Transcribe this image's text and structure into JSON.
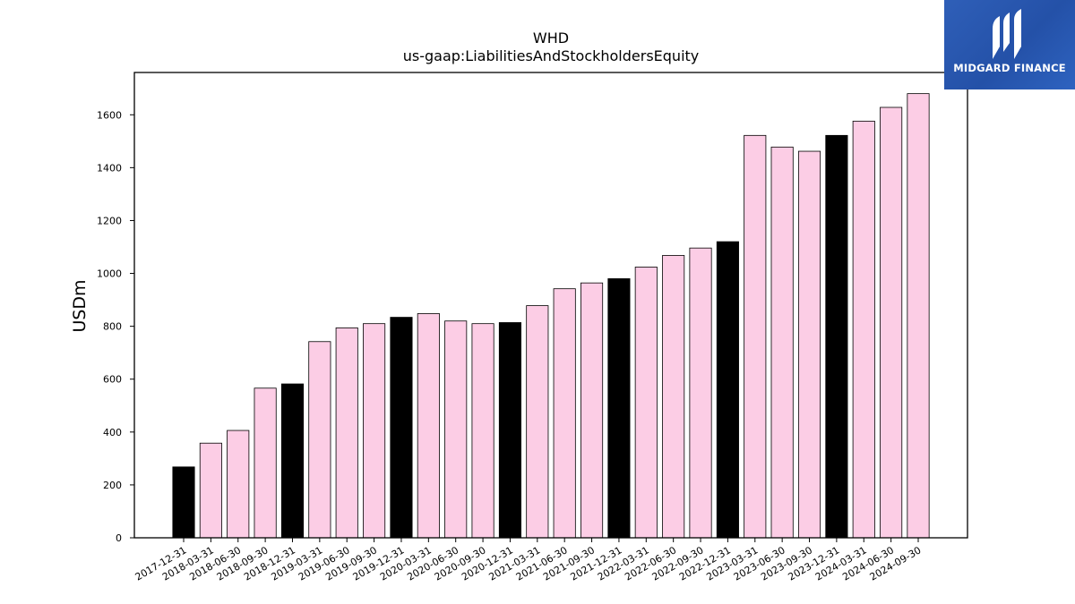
{
  "chart_data": {
    "type": "bar",
    "title": "WHD",
    "subtitle": "us-gaap:LiabilitiesAndStockholdersEquity",
    "xlabel": "",
    "ylabel": "USDm",
    "ylim": [
      0,
      1760
    ],
    "yticks": [
      0,
      200,
      400,
      600,
      800,
      1000,
      1200,
      1400,
      1600
    ],
    "grid": false,
    "categories": [
      "2017-12-31",
      "2018-03-31",
      "2018-06-30",
      "2018-09-30",
      "2018-12-31",
      "2019-03-31",
      "2019-06-30",
      "2019-09-30",
      "2019-12-31",
      "2020-03-31",
      "2020-06-30",
      "2020-09-30",
      "2020-12-31",
      "2021-03-31",
      "2021-06-30",
      "2021-09-30",
      "2021-12-31",
      "2022-03-31",
      "2022-06-30",
      "2022-09-30",
      "2022-12-31",
      "2023-03-31",
      "2023-06-30",
      "2023-09-30",
      "2023-12-31",
      "2024-03-31",
      "2024-06-30",
      "2024-09-30"
    ],
    "values": [
      268,
      358,
      406,
      566,
      582,
      742,
      794,
      810,
      834,
      848,
      820,
      810,
      814,
      878,
      942,
      964,
      980,
      1024,
      1068,
      1096,
      1120,
      1522,
      1478,
      1462,
      1522,
      1576,
      1628,
      1680
    ],
    "fiscal_year_end": [
      true,
      false,
      false,
      false,
      true,
      false,
      false,
      false,
      true,
      false,
      false,
      false,
      true,
      false,
      false,
      false,
      true,
      false,
      false,
      false,
      true,
      false,
      false,
      false,
      true,
      false,
      false,
      false
    ],
    "colors": {
      "year_end": "#000000",
      "quarter": "#fccde5",
      "edge": "#000000"
    }
  },
  "logo": {
    "text": "MIDGARD FINANCE",
    "background": "#2a58b0"
  }
}
